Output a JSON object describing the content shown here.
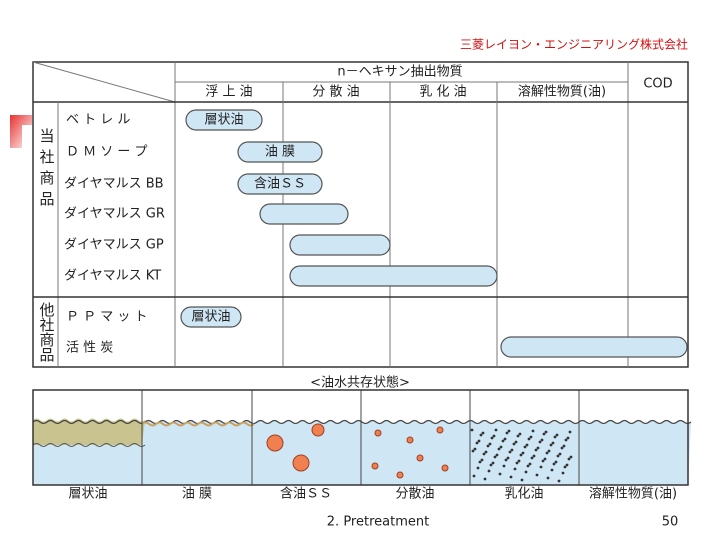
{
  "company": "三菱レイヨン・エンジニアリング株式会社",
  "table": {
    "header": {
      "group": "n－ヘキサン抽出物質",
      "columns": [
        "浮 上 油",
        "分 散 油",
        "乳 化 油",
        "溶解性物質(油)"
      ],
      "cod": "COD"
    },
    "groups": [
      {
        "label": "当社商品",
        "rows": [
          "ベ ト レ ル",
          "Ｄ Ｍ ソ ー プ",
          "ダイヤマルス BB",
          "ダイヤマルス GR",
          "ダイヤマルス GP",
          "ダイヤマルス KT"
        ]
      },
      {
        "label": "他社商品",
        "rows": [
          "Ｐ Ｐ マ ッ ト",
          "活  性  炭"
        ]
      }
    ],
    "bar_labels": [
      "層状油",
      "油 膜",
      "含油ＳＳ",
      "層状油"
    ]
  },
  "diagram": {
    "title": "<油水共存状態>",
    "labels": [
      "層状油",
      "油 膜",
      "含油ＳＳ",
      "分散油",
      "乳化油",
      "溶解性物質(油)"
    ]
  },
  "footer": {
    "text": "2. Pretreatment",
    "page": "50"
  }
}
